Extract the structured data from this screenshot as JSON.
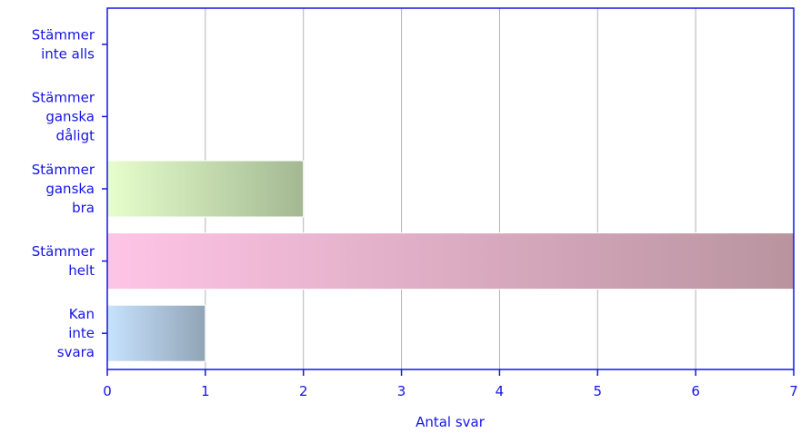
{
  "chart_data": {
    "type": "bar",
    "orientation": "horizontal",
    "categories": [
      [
        "Stämmer",
        "inte alls"
      ],
      [
        "Stämmer",
        "ganska",
        "dåligt"
      ],
      [
        "Stämmer",
        "ganska",
        "bra"
      ],
      [
        "Stämmer",
        "helt"
      ],
      [
        "Kan",
        "inte",
        "svara"
      ]
    ],
    "values": [
      0,
      0,
      2,
      7,
      1
    ],
    "xlabel": "Antal svar",
    "xlim": [
      0,
      7
    ],
    "xticks": [
      "0",
      "1",
      "2",
      "3",
      "4",
      "5",
      "6",
      "7"
    ],
    "grid": "vertical",
    "bar_colors": [
      [
        "#ffffff",
        "#ffffff"
      ],
      [
        "#ffffff",
        "#ffffff"
      ],
      [
        "#e6ffcc",
        "#a3b892"
      ],
      [
        "#ffc4e6",
        "#b9949f"
      ],
      [
        "#c7e3ff",
        "#91a4b6"
      ]
    ],
    "axis_color": "#1515e6",
    "grid_color": "#b4b4b4"
  }
}
